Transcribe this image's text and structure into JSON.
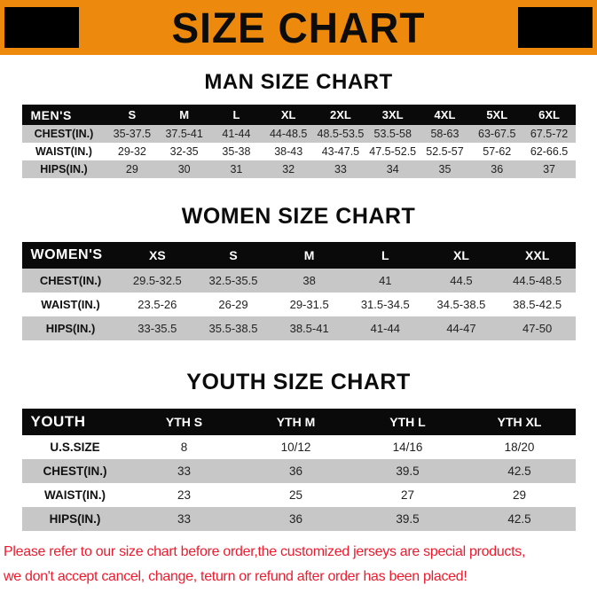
{
  "banner": {
    "title": "SIZE CHART",
    "bg_color": "#ED8A0D",
    "corner_color": "#000000",
    "text_color": "#0c0c0c"
  },
  "sections": [
    {
      "heading": "MAN SIZE CHART",
      "table": {
        "first_row_shaded": true,
        "header": [
          "MEN'S",
          "S",
          "M",
          "L",
          "XL",
          "2XL",
          "3XL",
          "4XL",
          "5XL",
          "6XL"
        ],
        "rows": [
          {
            "label": "CHEST(IN.)",
            "values": [
              "35-37.5",
              "37.5-41",
              "41-44",
              "44-48.5",
              "48.5-53.5",
              "53.5-58",
              "58-63",
              "63-67.5",
              "67.5-72"
            ]
          },
          {
            "label": "WAIST(IN.)",
            "values": [
              "29-32",
              "32-35",
              "35-38",
              "38-43",
              "43-47.5",
              "47.5-52.5",
              "52.5-57",
              "57-62",
              "62-66.5"
            ]
          },
          {
            "label": "HIPS(IN.)",
            "values": [
              "29",
              "30",
              "31",
              "32",
              "33",
              "34",
              "35",
              "36",
              "37"
            ]
          }
        ]
      }
    },
    {
      "heading": "WOMEN SIZE CHART",
      "table": {
        "first_row_shaded": true,
        "header": [
          "WOMEN'S",
          "XS",
          "S",
          "M",
          "L",
          "XL",
          "XXL"
        ],
        "rows": [
          {
            "label": "CHEST(IN.)",
            "values": [
              "29.5-32.5",
              "32.5-35.5",
              "38",
              "41",
              "44.5",
              "44.5-48.5"
            ]
          },
          {
            "label": "WAIST(IN.)",
            "values": [
              "23.5-26",
              "26-29",
              "29-31.5",
              "31.5-34.5",
              "34.5-38.5",
              "38.5-42.5"
            ]
          },
          {
            "label": "HIPS(IN.)",
            "values": [
              "33-35.5",
              "35.5-38.5",
              "38.5-41",
              "41-44",
              "44-47",
              "47-50"
            ]
          }
        ]
      }
    },
    {
      "heading": "YOUTH SIZE CHART",
      "table": {
        "first_row_shaded": false,
        "header": [
          "YOUTH",
          "YTH S",
          "YTH M",
          "YTH L",
          "YTH XL"
        ],
        "rows": [
          {
            "label": "U.S.SIZE",
            "values": [
              "8",
              "10/12",
              "14/16",
              "18/20"
            ]
          },
          {
            "label": "CHEST(IN.)",
            "values": [
              "33",
              "36",
              "39.5",
              "42.5"
            ]
          },
          {
            "label": "WAIST(IN.)",
            "values": [
              "23",
              "25",
              "27",
              "29"
            ]
          },
          {
            "label": "HIPS(IN.)",
            "values": [
              "33",
              "36",
              "39.5",
              "42.5"
            ]
          }
        ]
      }
    }
  ],
  "footer": {
    "color": "#ED1B2E",
    "lines": [
      "Please refer to our size chart before order,the customized jerseys are special products,",
      "we don't accept cancel, change, teturn or refund after order has been placed!"
    ]
  }
}
